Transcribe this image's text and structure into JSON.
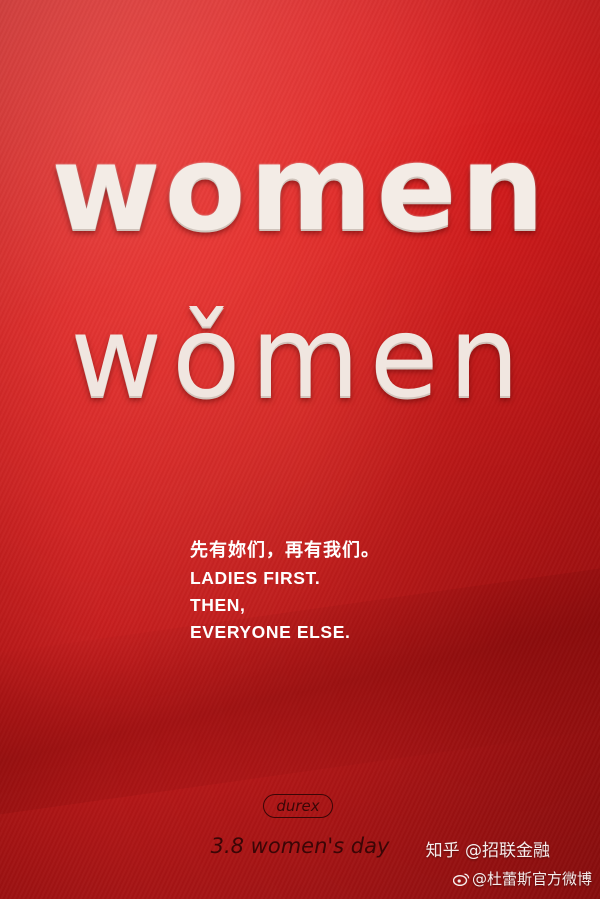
{
  "poster": {
    "headline_en": "women",
    "headline_pinyin": "wǒmen",
    "tagline_zh": "先有妳们，再有我们。",
    "tagline_en": [
      "LADIES FIRST.",
      "THEN,",
      "EVERYONE ELSE."
    ],
    "brand_logo": "durex",
    "event": "3.8 women's day"
  },
  "watermarks": {
    "zhihu": "知乎 @招联金融",
    "weibo": "@杜蕾斯官方微博"
  },
  "colors": {
    "background": "#d81d1e",
    "embroidery": "#f3ece6",
    "tagline": "#ffffff",
    "logo_ink": "#3a0606"
  },
  "icons": [
    "weibo-icon"
  ]
}
